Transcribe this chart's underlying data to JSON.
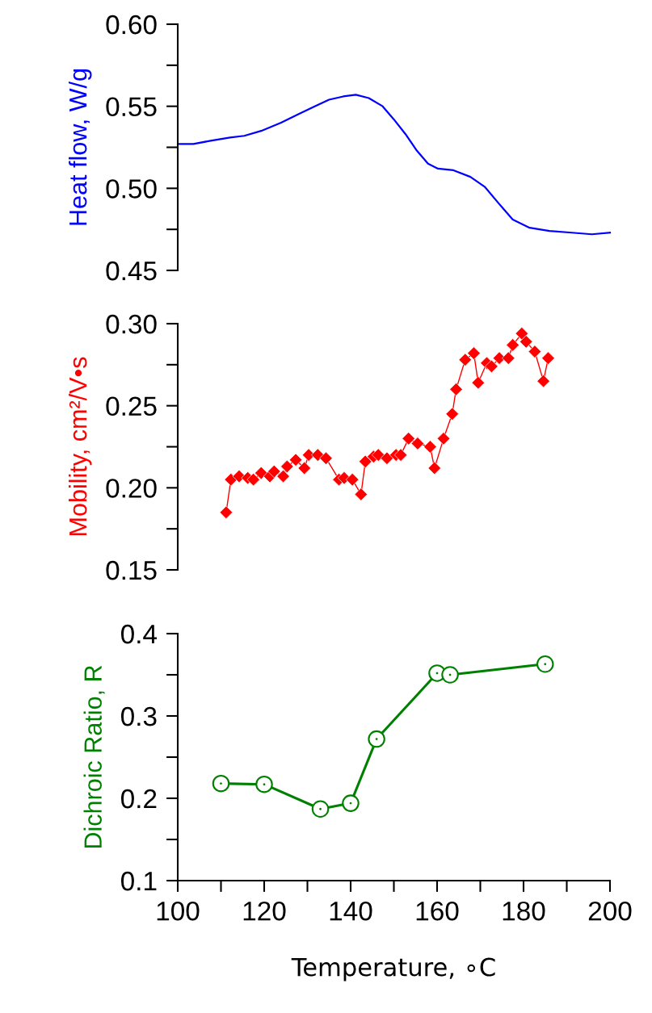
{
  "chart_data": [
    {
      "type": "line",
      "ylabel": "Heat flow, W/g",
      "xlim": [
        100,
        200
      ],
      "ylim": [
        0.45,
        0.6
      ],
      "yticks": [
        {
          "value": 0.45,
          "label": "0.45"
        },
        {
          "value": 0.5,
          "label": "0.50"
        },
        {
          "value": 0.55,
          "label": "0.55"
        },
        {
          "value": 0.6,
          "label": "0.60"
        }
      ],
      "tick_labels": "y",
      "marker": "none",
      "line_style": "solid",
      "series": [
        {
          "color": "#0000ff",
          "x": [
            100.4,
            103.6,
            107.6,
            112.1,
            115.4,
            119.3,
            123.9,
            127.8,
            131.7,
            135.0,
            138.3,
            141.2,
            144.2,
            147.4,
            150.0,
            152.7,
            155.3,
            157.9,
            160.2,
            163.8,
            167.7,
            171.0,
            174.2,
            177.5,
            181.4,
            186.0,
            191.2,
            195.8,
            200
          ],
          "values": [
            0.527,
            0.527,
            0.529,
            0.531,
            0.532,
            0.535,
            0.54,
            0.545,
            0.55,
            0.554,
            0.556,
            0.557,
            0.555,
            0.55,
            0.542,
            0.533,
            0.523,
            0.515,
            0.512,
            0.511,
            0.507,
            0.501,
            0.491,
            0.481,
            0.476,
            0.474,
            0.473,
            0.472,
            0.473
          ]
        }
      ]
    },
    {
      "type": "line",
      "ylabel": "Mobility, cm²/V•s",
      "xlim": [
        100,
        200
      ],
      "ylim": [
        0.15,
        0.3
      ],
      "yticks": [
        {
          "value": 0.15,
          "label": "0.15"
        },
        {
          "value": 0.2,
          "label": "0.20"
        },
        {
          "value": 0.25,
          "label": "0.25"
        },
        {
          "value": 0.3,
          "label": "0.30"
        }
      ],
      "tick_labels": "y",
      "marker": "diamond",
      "line_style": "solid",
      "series": [
        {
          "color": "#ff0000",
          "x": [
            111.2,
            112.3,
            114.2,
            116.2,
            117.5,
            119.3,
            121.3,
            122.3,
            124.4,
            125.3,
            127.3,
            129.3,
            130.3,
            132.4,
            134.3,
            137.3,
            138.5,
            140.4,
            142.4,
            143.4,
            145.3,
            146.4,
            148.4,
            150.5,
            151.6,
            153.4,
            155.5,
            158.4,
            159.4,
            161.5,
            163.5,
            164.4,
            166.5,
            168.5,
            169.5,
            171.5,
            172.6,
            174.4,
            176.5,
            177.5,
            179.6,
            180.6,
            182.6,
            184.6,
            185.7
          ],
          "values": [
            0.185,
            0.205,
            0.207,
            0.206,
            0.205,
            0.209,
            0.207,
            0.21,
            0.207,
            0.213,
            0.217,
            0.212,
            0.22,
            0.22,
            0.218,
            0.205,
            0.206,
            0.205,
            0.196,
            0.216,
            0.219,
            0.22,
            0.218,
            0.22,
            0.22,
            0.23,
            0.227,
            0.225,
            0.212,
            0.23,
            0.245,
            0.26,
            0.278,
            0.282,
            0.264,
            0.276,
            0.274,
            0.279,
            0.279,
            0.287,
            0.294,
            0.289,
            0.283,
            0.265,
            0.279
          ]
        }
      ]
    },
    {
      "type": "line",
      "ylabel": "Dichroic Ratio, R",
      "xlabel": "Temperature, ∘C",
      "xlim": [
        100,
        200
      ],
      "xticks": [
        100,
        120,
        140,
        160,
        180,
        200
      ],
      "ylim": [
        0.1,
        0.4
      ],
      "yticks": [
        0.1,
        0.2,
        0.3,
        0.4
      ],
      "marker": "circle",
      "line_style": "solid",
      "series": [
        {
          "color": "#008000",
          "x": [
            110,
            120,
            133,
            140,
            146,
            160,
            163,
            185
          ],
          "values": [
            0.218,
            0.217,
            0.187,
            0.194,
            0.272,
            0.352,
            0.35,
            0.363
          ]
        }
      ]
    }
  ]
}
